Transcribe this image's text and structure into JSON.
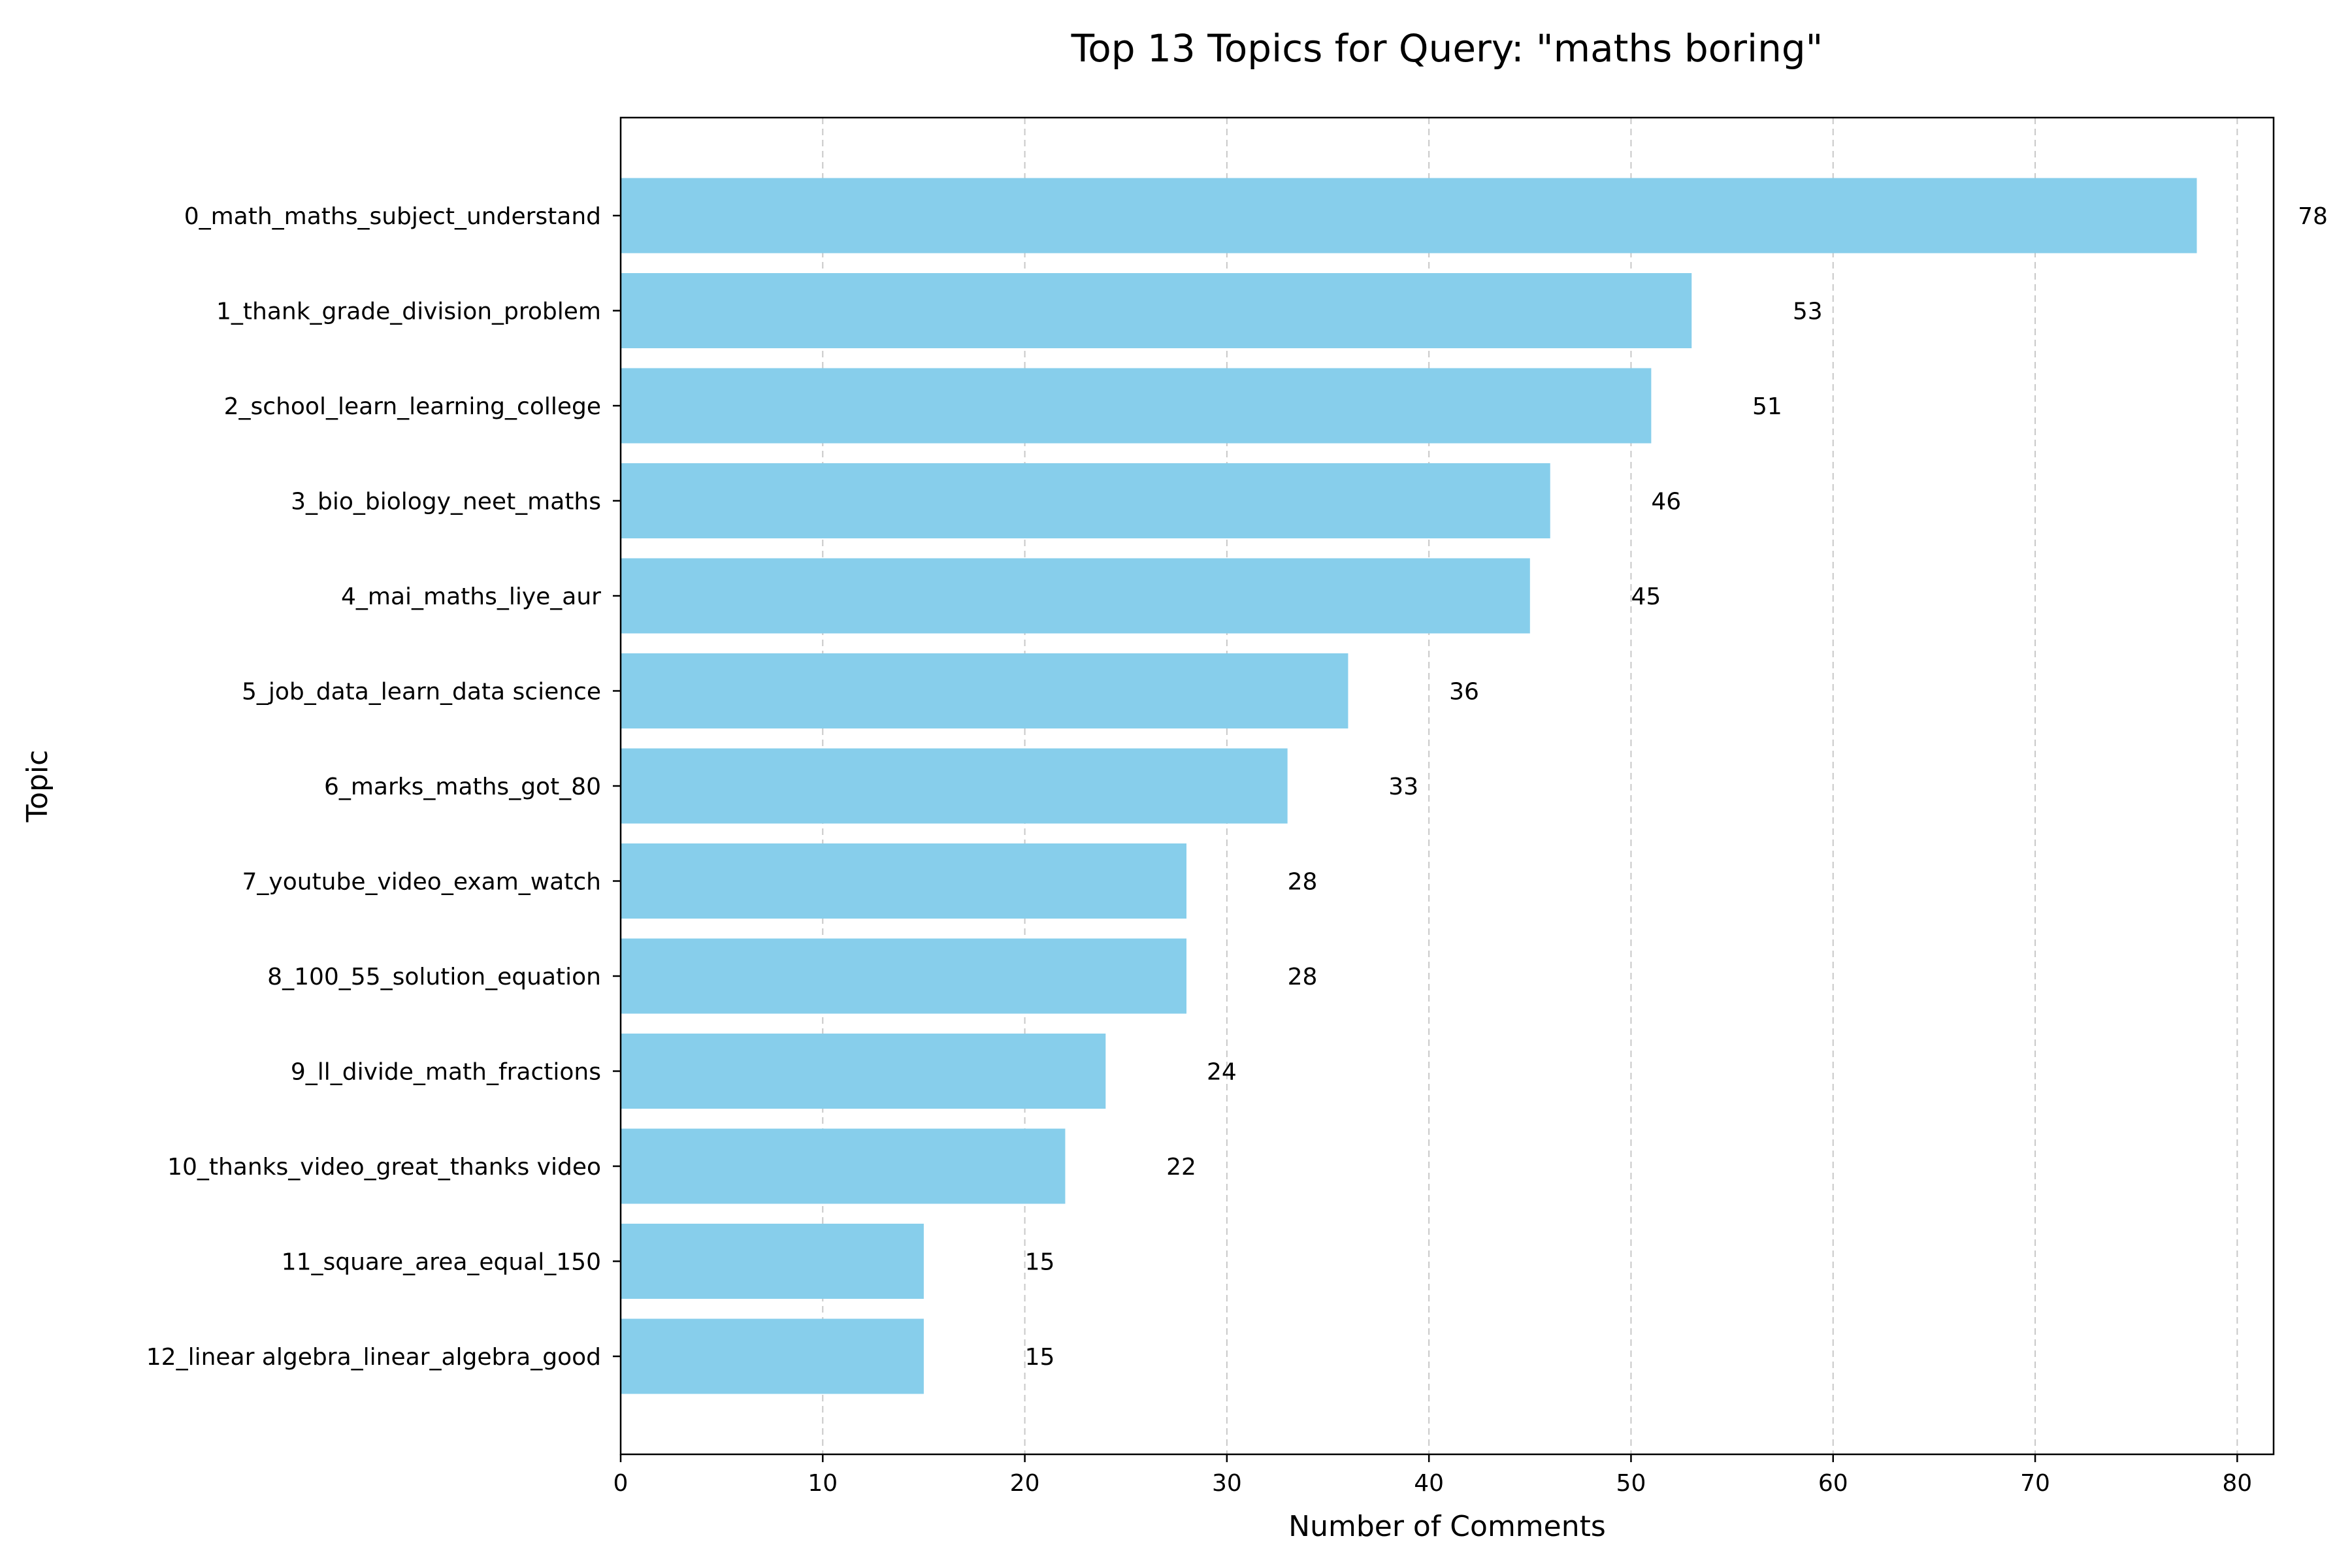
{
  "chart_data": {
    "type": "bar",
    "orientation": "horizontal",
    "title": "Top 13 Topics for Query: \"maths boring\"",
    "xlabel": "Number of Comments",
    "ylabel": "Topic",
    "categories": [
      "0_math_maths_subject_understand",
      "1_thank_grade_division_problem",
      "2_school_learn_learning_college",
      "3_bio_biology_neet_maths",
      "4_mai_maths_liye_aur",
      "5_job_data_learn_data science",
      "6_marks_maths_got_80",
      "7_youtube_video_exam_watch",
      "8_100_55_solution_equation",
      "9_ll_divide_math_fractions",
      "10_thanks_video_great_thanks video",
      "11_square_area_equal_150",
      "12_linear algebra_linear_algebra_good"
    ],
    "values": [
      78,
      53,
      51,
      46,
      45,
      36,
      33,
      28,
      28,
      24,
      22,
      15,
      15
    ],
    "data_labels": [
      "78",
      "53",
      "51",
      "46",
      "45",
      "36",
      "33",
      "28",
      "28",
      "24",
      "22",
      "15",
      "15"
    ],
    "xlim": [
      0,
      81.8
    ],
    "xticks": [
      0,
      10,
      20,
      30,
      40,
      50,
      60,
      70,
      80
    ],
    "xtick_labels": [
      "0",
      "10",
      "20",
      "30",
      "40",
      "50",
      "60",
      "70",
      "80"
    ],
    "grid": "x-axis dashed",
    "legend": "none",
    "colors": {
      "bar": "#87ceeb",
      "grid": "#c8c8c8",
      "axis": "#000000",
      "text": "#000000"
    }
  }
}
